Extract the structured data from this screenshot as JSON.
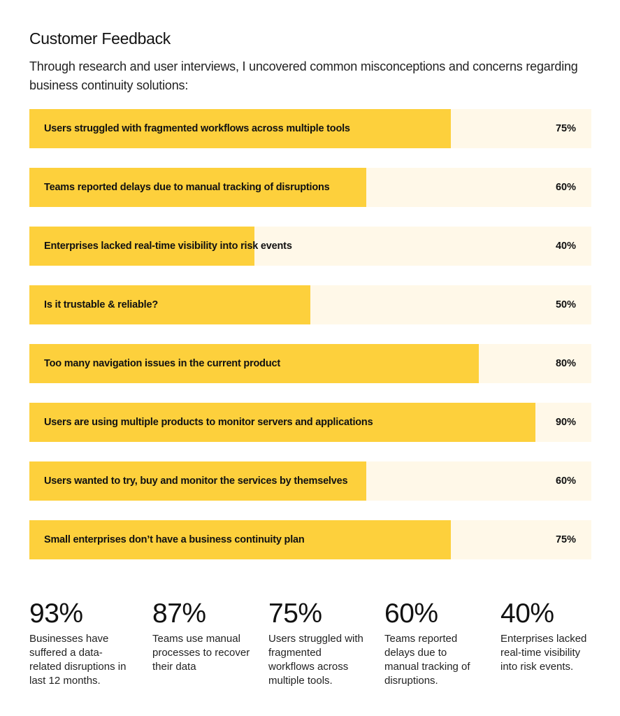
{
  "header": {
    "title": "Customer Feedback",
    "subtitle": "Through research and user interviews, I uncovered common misconceptions and concerns regarding business continuity solutions:"
  },
  "colors": {
    "fill": "#FDD03C",
    "track": "#FFF8E8",
    "text": "#111111"
  },
  "chart_data": {
    "type": "bar",
    "orientation": "horizontal",
    "title": "Customer Feedback",
    "categories": [
      "Users struggled with fragmented workflows across multiple tools",
      "Teams reported delays due to manual tracking of disruptions",
      "Enterprises lacked real-time visibility into risk events",
      "Is it trustable & reliable?",
      "Too many navigation issues in the current product",
      "Users are using multiple products to monitor servers and applications",
      "Users wanted to try, buy and monitor the services by themselves",
      "Small enterprises don’t have a business continuity plan"
    ],
    "values": [
      75,
      60,
      40,
      50,
      80,
      90,
      60,
      75
    ],
    "value_labels": [
      "75%",
      "60%",
      "40%",
      "50%",
      "80%",
      "90%",
      "60%",
      "75%"
    ],
    "xlim": [
      0,
      100
    ],
    "unit": "%",
    "grid": false,
    "legend": "none"
  },
  "stats": [
    {
      "value": "93%",
      "caption": "Businesses have suffered a data-related disruptions in last 12 months."
    },
    {
      "value": "87%",
      "caption": "Teams use manual processes to recover their data"
    },
    {
      "value": "75%",
      "caption": "Users struggled with fragmented workflows across multiple tools."
    },
    {
      "value": "60%",
      "caption": "Teams reported delays due to manual tracking of disruptions."
    },
    {
      "value": "40%",
      "caption": "Enterprises lacked real-time visibility into risk events."
    }
  ]
}
